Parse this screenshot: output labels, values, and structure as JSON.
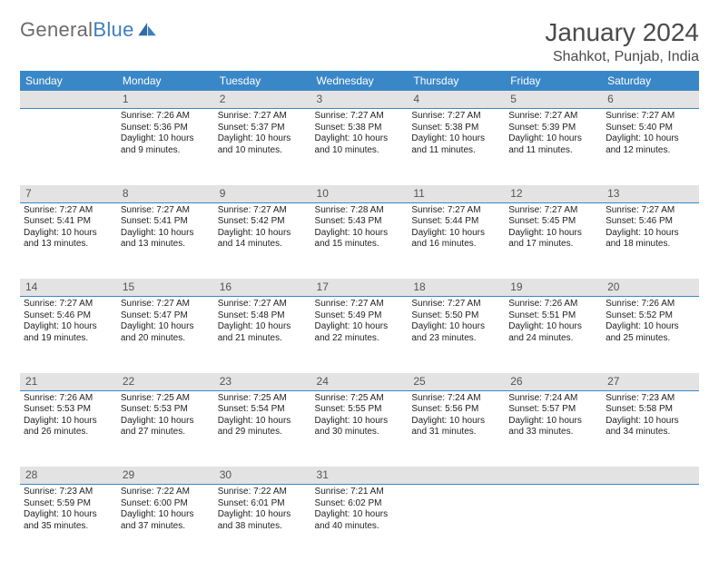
{
  "logo": {
    "word1": "General",
    "word2": "Blue"
  },
  "header": {
    "title": "January 2024",
    "location": "Shahkot, Punjab, India"
  },
  "style": {
    "header_bg": "#3a87c8",
    "header_text": "#ffffff",
    "daynum_bg": "#e3e3e3",
    "daynum_border": "#3a87c8",
    "body_text": "#222222",
    "page_bg": "#ffffff",
    "title_fontsize": 28,
    "location_fontsize": 16,
    "header_fontsize": 12,
    "daynum_fontsize": 12,
    "cell_fontsize": 10
  },
  "weekdays": [
    "Sunday",
    "Monday",
    "Tuesday",
    "Wednesday",
    "Thursday",
    "Friday",
    "Saturday"
  ],
  "weeks": [
    {
      "nums": [
        "",
        "1",
        "2",
        "3",
        "4",
        "5",
        "6"
      ],
      "cells": [
        "",
        "Sunrise: 7:26 AM\nSunset: 5:36 PM\nDaylight: 10 hours and 9 minutes.",
        "Sunrise: 7:27 AM\nSunset: 5:37 PM\nDaylight: 10 hours and 10 minutes.",
        "Sunrise: 7:27 AM\nSunset: 5:38 PM\nDaylight: 10 hours and 10 minutes.",
        "Sunrise: 7:27 AM\nSunset: 5:38 PM\nDaylight: 10 hours and 11 minutes.",
        "Sunrise: 7:27 AM\nSunset: 5:39 PM\nDaylight: 10 hours and 11 minutes.",
        "Sunrise: 7:27 AM\nSunset: 5:40 PM\nDaylight: 10 hours and 12 minutes."
      ]
    },
    {
      "nums": [
        "7",
        "8",
        "9",
        "10",
        "11",
        "12",
        "13"
      ],
      "cells": [
        "Sunrise: 7:27 AM\nSunset: 5:41 PM\nDaylight: 10 hours and 13 minutes.",
        "Sunrise: 7:27 AM\nSunset: 5:41 PM\nDaylight: 10 hours and 13 minutes.",
        "Sunrise: 7:27 AM\nSunset: 5:42 PM\nDaylight: 10 hours and 14 minutes.",
        "Sunrise: 7:28 AM\nSunset: 5:43 PM\nDaylight: 10 hours and 15 minutes.",
        "Sunrise: 7:27 AM\nSunset: 5:44 PM\nDaylight: 10 hours and 16 minutes.",
        "Sunrise: 7:27 AM\nSunset: 5:45 PM\nDaylight: 10 hours and 17 minutes.",
        "Sunrise: 7:27 AM\nSunset: 5:46 PM\nDaylight: 10 hours and 18 minutes."
      ]
    },
    {
      "nums": [
        "14",
        "15",
        "16",
        "17",
        "18",
        "19",
        "20"
      ],
      "cells": [
        "Sunrise: 7:27 AM\nSunset: 5:46 PM\nDaylight: 10 hours and 19 minutes.",
        "Sunrise: 7:27 AM\nSunset: 5:47 PM\nDaylight: 10 hours and 20 minutes.",
        "Sunrise: 7:27 AM\nSunset: 5:48 PM\nDaylight: 10 hours and 21 minutes.",
        "Sunrise: 7:27 AM\nSunset: 5:49 PM\nDaylight: 10 hours and 22 minutes.",
        "Sunrise: 7:27 AM\nSunset: 5:50 PM\nDaylight: 10 hours and 23 minutes.",
        "Sunrise: 7:26 AM\nSunset: 5:51 PM\nDaylight: 10 hours and 24 minutes.",
        "Sunrise: 7:26 AM\nSunset: 5:52 PM\nDaylight: 10 hours and 25 minutes."
      ]
    },
    {
      "nums": [
        "21",
        "22",
        "23",
        "24",
        "25",
        "26",
        "27"
      ],
      "cells": [
        "Sunrise: 7:26 AM\nSunset: 5:53 PM\nDaylight: 10 hours and 26 minutes.",
        "Sunrise: 7:25 AM\nSunset: 5:53 PM\nDaylight: 10 hours and 27 minutes.",
        "Sunrise: 7:25 AM\nSunset: 5:54 PM\nDaylight: 10 hours and 29 minutes.",
        "Sunrise: 7:25 AM\nSunset: 5:55 PM\nDaylight: 10 hours and 30 minutes.",
        "Sunrise: 7:24 AM\nSunset: 5:56 PM\nDaylight: 10 hours and 31 minutes.",
        "Sunrise: 7:24 AM\nSunset: 5:57 PM\nDaylight: 10 hours and 33 minutes.",
        "Sunrise: 7:23 AM\nSunset: 5:58 PM\nDaylight: 10 hours and 34 minutes."
      ]
    },
    {
      "nums": [
        "28",
        "29",
        "30",
        "31",
        "",
        "",
        ""
      ],
      "cells": [
        "Sunrise: 7:23 AM\nSunset: 5:59 PM\nDaylight: 10 hours and 35 minutes.",
        "Sunrise: 7:22 AM\nSunset: 6:00 PM\nDaylight: 10 hours and 37 minutes.",
        "Sunrise: 7:22 AM\nSunset: 6:01 PM\nDaylight: 10 hours and 38 minutes.",
        "Sunrise: 7:21 AM\nSunset: 6:02 PM\nDaylight: 10 hours and 40 minutes.",
        "",
        "",
        ""
      ]
    }
  ]
}
